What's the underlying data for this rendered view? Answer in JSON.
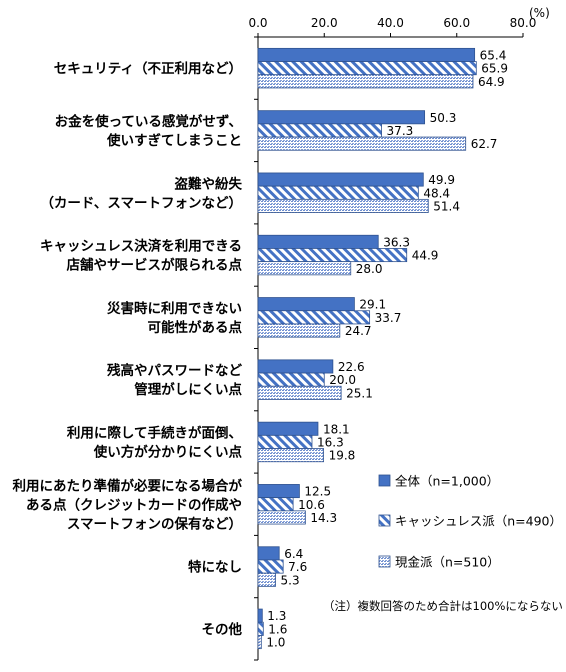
{
  "chart_data": {
    "type": "bar",
    "orientation": "horizontal",
    "unit_label": "(%)",
    "xlim": [
      0,
      80
    ],
    "x_ticks": [
      "0.0",
      "20.0",
      "40.0",
      "60.0",
      "80.0"
    ],
    "grid": false,
    "legend_position": "right",
    "categories": [
      [
        "セキュリティ（不正利用など）"
      ],
      [
        "お金を使っている感覚がせず、",
        "使いすぎてしまうこと"
      ],
      [
        "盗難や紛失",
        "（カード、スマートフォンなど）"
      ],
      [
        "キャッシュレス決済を利用できる",
        "店舗やサービスが限られる点"
      ],
      [
        "災害時に利用できない",
        "可能性がある点"
      ],
      [
        "残高やパスワードなど",
        "管理がしにくい点"
      ],
      [
        "利用に際して手続きが面倒、",
        "使い方が分かりにくい点"
      ],
      [
        "利用にあたり準備が必要になる場合が",
        "ある点（クレジットカードの作成や",
        "スマートフォンの保有など）"
      ],
      [
        "特になし"
      ],
      [
        "その他"
      ]
    ],
    "series": [
      {
        "name": "全体（n=1,000）",
        "pattern": "solid",
        "color": "#4472c4",
        "values": [
          65.4,
          50.3,
          49.9,
          36.3,
          29.1,
          22.6,
          18.1,
          12.5,
          6.4,
          1.3
        ],
        "labels": [
          "65.4",
          "50.3",
          "49.9",
          "36.3",
          "29.1",
          "22.6",
          "18.1",
          "12.5",
          "6.4",
          "1.3"
        ]
      },
      {
        "name": "キャッシュレス派（n=490）",
        "pattern": "diagonal-stripes",
        "color": "#4472c4",
        "values": [
          65.9,
          37.3,
          48.4,
          44.9,
          33.7,
          20.0,
          16.3,
          10.6,
          7.6,
          1.6
        ],
        "labels": [
          "65.9",
          "37.3",
          "48.4",
          "44.9",
          "33.7",
          "20.0",
          "16.3",
          "10.6",
          "7.6",
          "1.6"
        ]
      },
      {
        "name": "現金派（n=510）",
        "pattern": "dots",
        "color": "#4472c4",
        "values": [
          64.9,
          62.7,
          51.4,
          28.0,
          24.7,
          25.1,
          19.8,
          14.3,
          5.3,
          1.0
        ],
        "labels": [
          "64.9",
          "62.7",
          "51.4",
          "28.0",
          "24.7",
          "25.1",
          "19.8",
          "14.3",
          "5.3",
          "1.0"
        ]
      }
    ],
    "annotation": "（注）複数回答のため合計は100%にならない"
  }
}
